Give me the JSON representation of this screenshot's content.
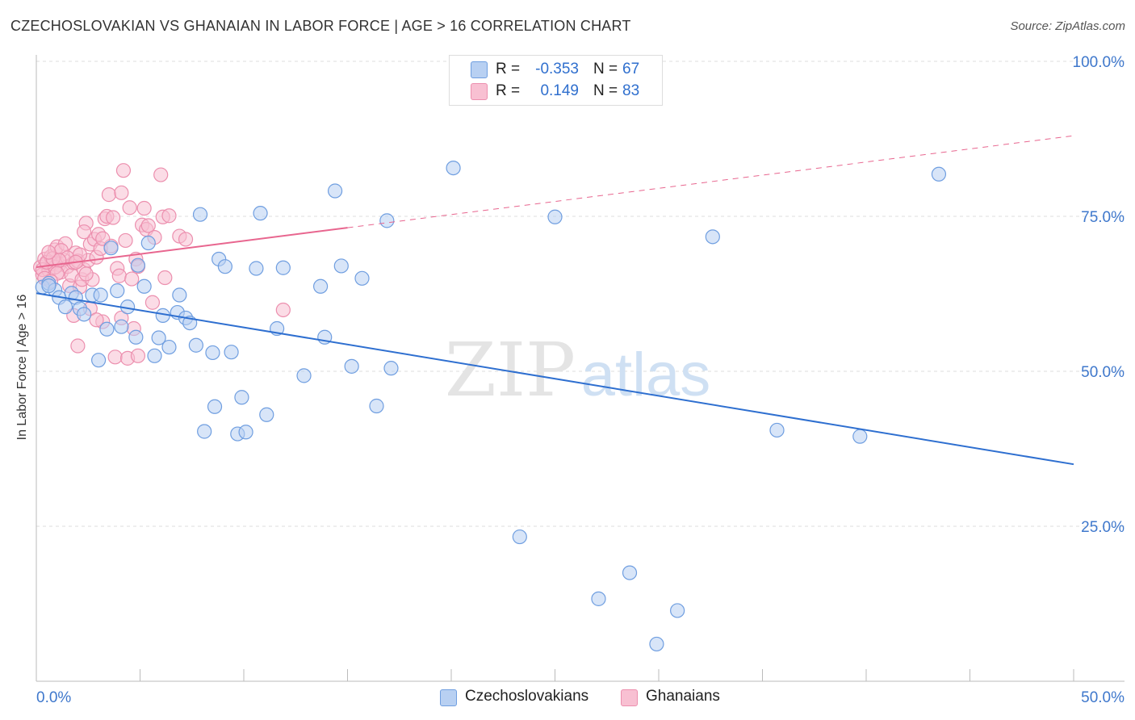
{
  "header": {
    "title": "CZECHOSLOVAKIAN VS GHANAIAN IN LABOR FORCE | AGE > 16 CORRELATION CHART",
    "source": "Source: ZipAtlas.com"
  },
  "legend": {
    "rows": [
      {
        "r_label": "R =",
        "r_value": "-0.353",
        "n_label": "N =",
        "n_value": "67"
      },
      {
        "r_label": "R =",
        "r_value": "0.149",
        "n_label": "N =",
        "n_value": "83"
      }
    ]
  },
  "bottom_legend": {
    "czech": "Czechoslovakians",
    "ghana": "Ghanaians"
  },
  "watermark": {
    "zip": "ZIP",
    "atlas": "atlas"
  },
  "colors": {
    "czech_fill": "#b8d0f2",
    "czech_stroke": "#6f9ee0",
    "czech_line": "#2e6fd0",
    "ghana_fill": "#f8c0d2",
    "ghana_stroke": "#ec8fae",
    "ghana_line": "#e8668f",
    "tick_label": "#3f78cc",
    "grid": "#dddddd"
  },
  "chart_data": {
    "type": "scatter",
    "title": "CZECHOSLOVAKIAN VS GHANAIAN IN LABOR FORCE | AGE > 16 CORRELATION CHART",
    "xlabel": "",
    "ylabel": "In Labor Force | Age > 16",
    "xlim": [
      0,
      50
    ],
    "ylim": [
      0,
      100
    ],
    "x_tick_labels": [
      "0.0%",
      "50.0%"
    ],
    "y_ticks": [
      25,
      50,
      75,
      100
    ],
    "y_tick_labels": [
      "25.0%",
      "50.0%",
      "75.0%",
      "100.0%"
    ],
    "grid": true,
    "legend_placement": "top-center",
    "series": [
      {
        "name": "Czechoslovakians",
        "r": -0.353,
        "n": 67,
        "trend": {
          "x": [
            0,
            50
          ],
          "y": [
            62.6,
            35.0
          ],
          "dashed_from": null
        },
        "points": [
          [
            0.3,
            63.6
          ],
          [
            0.6,
            64.2
          ],
          [
            0.9,
            63.1
          ],
          [
            1.1,
            61.9
          ],
          [
            1.4,
            60.4
          ],
          [
            1.7,
            62.6
          ],
          [
            1.9,
            61.9
          ],
          [
            2.1,
            60.1
          ],
          [
            2.3,
            59.2
          ],
          [
            2.7,
            62.3
          ],
          [
            3.0,
            51.8
          ],
          [
            3.1,
            62.3
          ],
          [
            3.4,
            56.8
          ],
          [
            3.6,
            69.9
          ],
          [
            3.9,
            63.0
          ],
          [
            4.1,
            57.2
          ],
          [
            4.4,
            60.4
          ],
          [
            4.8,
            55.5
          ],
          [
            4.9,
            67.1
          ],
          [
            5.2,
            63.7
          ],
          [
            5.4,
            70.7
          ],
          [
            5.7,
            52.5
          ],
          [
            5.9,
            55.4
          ],
          [
            6.1,
            59.0
          ],
          [
            6.4,
            53.9
          ],
          [
            6.8,
            59.5
          ],
          [
            6.9,
            62.3
          ],
          [
            7.2,
            58.6
          ],
          [
            7.4,
            57.8
          ],
          [
            7.7,
            54.2
          ],
          [
            7.9,
            75.3
          ],
          [
            8.5,
            53.0
          ],
          [
            8.6,
            44.3
          ],
          [
            8.1,
            40.3
          ],
          [
            8.8,
            68.1
          ],
          [
            9.1,
            66.9
          ],
          [
            9.4,
            53.1
          ],
          [
            9.7,
            39.9
          ],
          [
            9.9,
            45.8
          ],
          [
            10.1,
            40.2
          ],
          [
            10.6,
            66.6
          ],
          [
            10.8,
            75.5
          ],
          [
            11.1,
            43.0
          ],
          [
            11.6,
            56.9
          ],
          [
            11.9,
            66.7
          ],
          [
            12.9,
            49.3
          ],
          [
            13.7,
            63.7
          ],
          [
            13.9,
            55.5
          ],
          [
            14.4,
            79.1
          ],
          [
            14.7,
            67.0
          ],
          [
            15.2,
            50.8
          ],
          [
            15.7,
            65.0
          ],
          [
            16.4,
            44.4
          ],
          [
            16.9,
            74.3
          ],
          [
            17.1,
            50.5
          ],
          [
            20.1,
            82.8
          ],
          [
            23.3,
            23.3
          ],
          [
            25.0,
            74.9
          ],
          [
            27.1,
            13.3
          ],
          [
            28.6,
            17.5
          ],
          [
            29.9,
            6.0
          ],
          [
            30.9,
            11.4
          ],
          [
            32.6,
            71.7
          ],
          [
            35.7,
            40.5
          ],
          [
            39.7,
            39.5
          ],
          [
            43.5,
            81.8
          ],
          [
            0.6,
            63.8
          ]
        ]
      },
      {
        "name": "Ghanaians",
        "r": 0.149,
        "n": 83,
        "trend": {
          "x": [
            0,
            50
          ],
          "y": [
            66.8,
            88.0
          ],
          "dashed_from": 15
        },
        "points": [
          [
            0.2,
            66.8
          ],
          [
            0.3,
            65.6
          ],
          [
            0.4,
            68.1
          ],
          [
            0.5,
            67.4
          ],
          [
            0.6,
            66.3
          ],
          [
            0.7,
            68.5
          ],
          [
            0.8,
            67.3
          ],
          [
            0.9,
            69.6
          ],
          [
            1.0,
            70.1
          ],
          [
            1.1,
            67.2
          ],
          [
            1.2,
            66.0
          ],
          [
            1.3,
            68.0
          ],
          [
            1.4,
            70.6
          ],
          [
            1.5,
            66.9
          ],
          [
            1.6,
            63.8
          ],
          [
            1.7,
            65.5
          ],
          [
            1.8,
            67.5
          ],
          [
            1.9,
            69.1
          ],
          [
            2.0,
            67.8
          ],
          [
            2.1,
            63.6
          ],
          [
            2.2,
            64.8
          ],
          [
            2.3,
            66.4
          ],
          [
            2.4,
            73.9
          ],
          [
            2.5,
            67.9
          ],
          [
            2.6,
            70.5
          ],
          [
            2.7,
            64.8
          ],
          [
            2.8,
            71.3
          ],
          [
            2.9,
            68.4
          ],
          [
            3.0,
            72.1
          ],
          [
            3.1,
            69.8
          ],
          [
            3.2,
            58.0
          ],
          [
            3.3,
            74.6
          ],
          [
            3.4,
            75.0
          ],
          [
            3.5,
            78.5
          ],
          [
            3.6,
            70.2
          ],
          [
            3.7,
            74.8
          ],
          [
            3.8,
            52.3
          ],
          [
            3.9,
            66.6
          ],
          [
            4.0,
            65.4
          ],
          [
            4.1,
            78.8
          ],
          [
            4.2,
            82.4
          ],
          [
            4.3,
            71.1
          ],
          [
            4.4,
            52.1
          ],
          [
            4.5,
            76.4
          ],
          [
            4.6,
            64.9
          ],
          [
            4.7,
            56.9
          ],
          [
            4.8,
            68.1
          ],
          [
            4.9,
            66.9
          ],
          [
            5.1,
            73.6
          ],
          [
            5.2,
            76.3
          ],
          [
            5.3,
            72.9
          ],
          [
            5.4,
            73.5
          ],
          [
            5.6,
            61.1
          ],
          [
            5.7,
            71.6
          ],
          [
            6.0,
            81.7
          ],
          [
            6.1,
            74.9
          ],
          [
            6.2,
            65.1
          ],
          [
            6.4,
            75.1
          ],
          [
            6.9,
            71.8
          ],
          [
            7.2,
            71.3
          ],
          [
            11.9,
            59.9
          ],
          [
            0.3,
            66.4
          ],
          [
            0.9,
            66.8
          ],
          [
            1.2,
            69.5
          ],
          [
            1.5,
            68.3
          ],
          [
            1.8,
            59.0
          ],
          [
            2.0,
            54.1
          ],
          [
            2.1,
            68.8
          ],
          [
            2.3,
            72.5
          ],
          [
            2.6,
            60.1
          ],
          [
            2.9,
            58.3
          ],
          [
            3.2,
            71.4
          ],
          [
            0.5,
            67.6
          ],
          [
            0.4,
            65.0
          ],
          [
            0.8,
            68.2
          ],
          [
            1.1,
            67.9
          ],
          [
            1.9,
            67.6
          ],
          [
            2.4,
            65.7
          ],
          [
            4.1,
            58.6
          ],
          [
            4.9,
            52.5
          ],
          [
            1.0,
            65.8
          ],
          [
            0.6,
            69.2
          ],
          [
            0.7,
            64.5
          ]
        ]
      }
    ]
  }
}
